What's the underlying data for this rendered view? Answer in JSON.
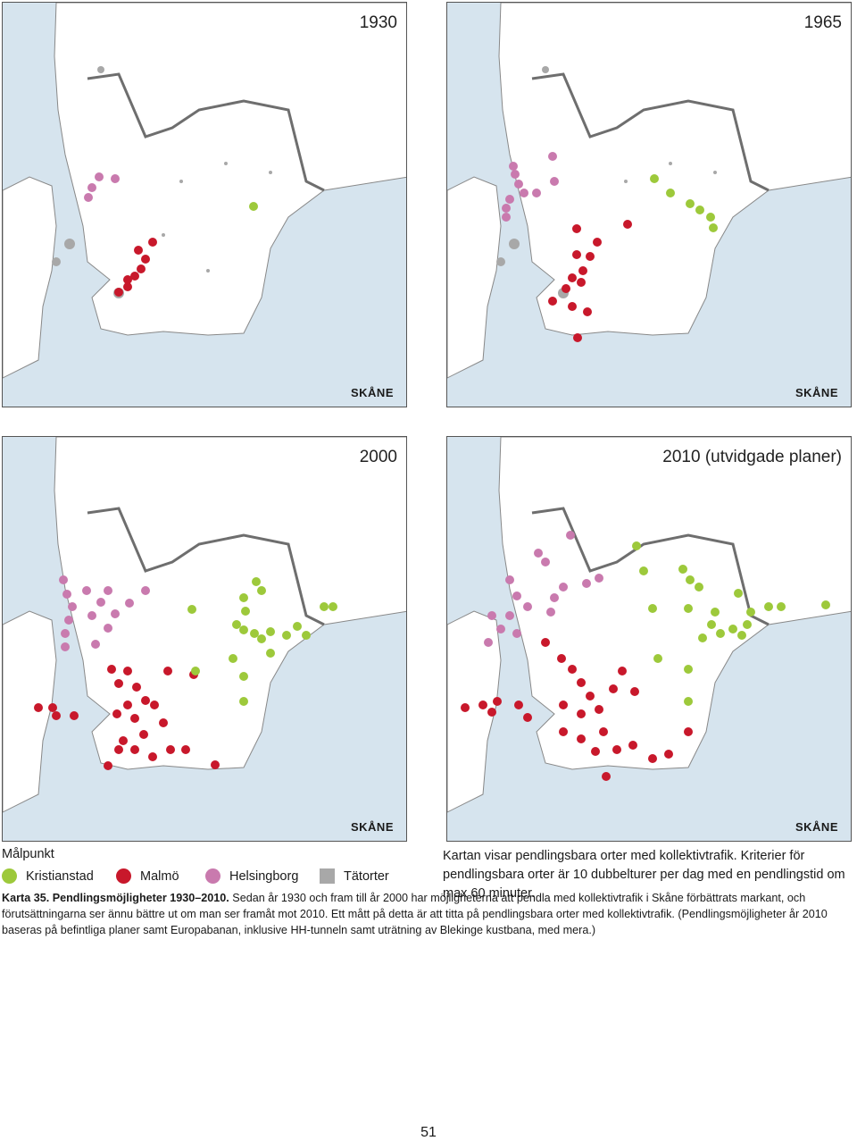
{
  "maps": [
    {
      "year_label": "1930",
      "logo_text": "SKÅNE"
    },
    {
      "year_label": "1965",
      "logo_text": "SKÅNE"
    },
    {
      "year_label": "2000",
      "logo_text": "SKÅNE"
    },
    {
      "year_label": "2010 (utvidgade planer)",
      "logo_text": "SKÅNE"
    }
  ],
  "legend": {
    "heading": "Målpunkt",
    "items": [
      {
        "label": "Kristianstad",
        "color": "#9dc93b"
      },
      {
        "label": "Malmö",
        "color": "#c8182b"
      },
      {
        "label": "Helsingborg",
        "color": "#c97aae"
      },
      {
        "label": "Tätorter",
        "color": "#a8a8a8"
      }
    ]
  },
  "criteria": "Kartan visar pendlingsbara orter med kollektivtrafik. Kriterier för pendlingsbara orter är 10 dubbelturer per dag med en pendlingstid om max 60 minuter.",
  "caption": {
    "bold": "Karta 35. Pendlingsmöjligheter 1930–2010.",
    "text": " Sedan år 1930 och fram till år 2000 har möjligheterna att pendla med kollektivtrafik i Skåne förbättrats markant, och förutsättningarna ser ännu bättre ut om man ser framåt mot 2010. Ett mått på detta är att titta på pendlingsbara orter med kollektivtrafik. (Pendlingsmöjligheter år 2010 baseras på befintliga planer samt Europabanan, inklusive HH-tunneln samt uträtning av Blekinge kustbana, med mera.)"
  },
  "colors": {
    "sea": "#d6e4ee",
    "land": "#ffffff",
    "border": "#7a7a7a",
    "kristianstad": "#9dc93b",
    "malmo": "#c8182b",
    "helsingborg": "#c97aae",
    "tatorter": "#a8a8a8"
  },
  "page_number": "51"
}
